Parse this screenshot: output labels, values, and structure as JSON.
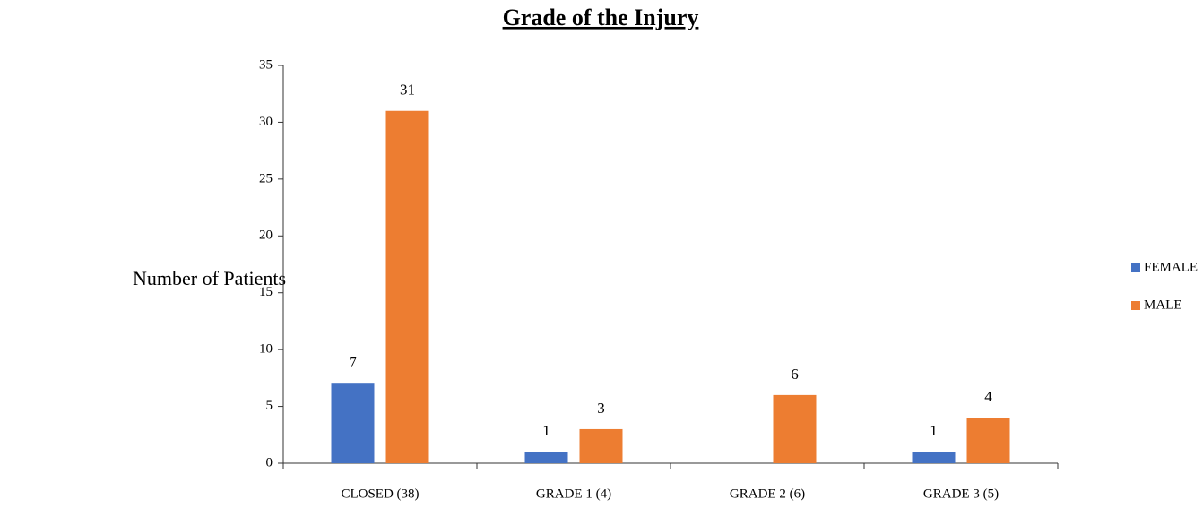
{
  "chart_data": {
    "type": "bar",
    "title": "Grade of the Injury",
    "ylabel": "Number of Patients",
    "categories": [
      "CLOSED (38)",
      "GRADE 1 (4)",
      "GRADE 2 (6)",
      "GRADE 3 (5)"
    ],
    "series": [
      {
        "name": "FEMALE",
        "color": "#4472c4",
        "values": [
          7,
          1,
          null,
          1
        ]
      },
      {
        "name": "MALE",
        "color": "#ed7d31",
        "values": [
          31,
          3,
          6,
          4
        ]
      }
    ],
    "ylim": [
      0,
      35
    ],
    "yticks": [
      0,
      5,
      10,
      15,
      20,
      25,
      30,
      35
    ],
    "grid": false,
    "legend": "right"
  }
}
